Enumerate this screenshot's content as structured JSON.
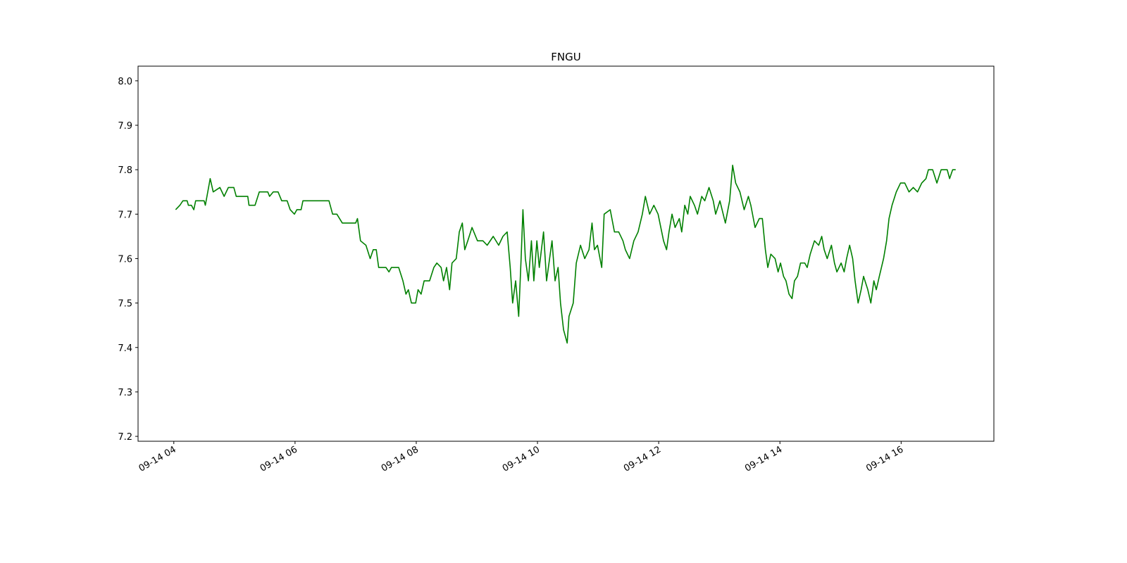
{
  "chart_data": {
    "type": "line",
    "title": "FNGU",
    "color": "#008000",
    "xlim": [
      3.41,
      17.53
    ],
    "ylim": [
      7.189,
      8.033
    ],
    "xticks": [
      {
        "value": 4,
        "label": "09-14 04"
      },
      {
        "value": 6,
        "label": "09-14 06"
      },
      {
        "value": 8,
        "label": "09-14 08"
      },
      {
        "value": 10,
        "label": "09-14 10"
      },
      {
        "value": 12,
        "label": "09-14 12"
      },
      {
        "value": 14,
        "label": "09-14 14"
      },
      {
        "value": 16,
        "label": "09-14 16"
      }
    ],
    "yticks": [
      7.2,
      7.3,
      7.4,
      7.5,
      7.6,
      7.7,
      7.8,
      7.9,
      {
        "value": 8.0,
        "label": "8.0"
      }
    ],
    "x": [
      4.03,
      4.1,
      4.15,
      4.22,
      4.24,
      4.29,
      4.33,
      4.36,
      4.5,
      4.52,
      4.56,
      4.6,
      4.65,
      4.76,
      4.83,
      4.9,
      4.99,
      5.03,
      5.22,
      5.24,
      5.34,
      5.41,
      5.55,
      5.58,
      5.64,
      5.72,
      5.78,
      5.87,
      5.92,
      5.99,
      6.03,
      6.1,
      6.13,
      6.56,
      6.62,
      6.69,
      6.78,
      7.0,
      7.03,
      7.08,
      7.17,
      7.24,
      7.29,
      7.34,
      7.38,
      7.43,
      7.5,
      7.55,
      7.59,
      7.71,
      7.78,
      7.83,
      7.87,
      7.92,
      7.99,
      8.03,
      8.08,
      8.13,
      8.22,
      8.29,
      8.34,
      8.41,
      8.45,
      8.5,
      8.55,
      8.59,
      8.66,
      8.71,
      8.76,
      8.8,
      8.85,
      8.92,
      9.01,
      9.1,
      9.17,
      9.27,
      9.36,
      9.43,
      9.5,
      9.55,
      9.59,
      9.64,
      9.69,
      9.73,
      9.76,
      9.8,
      9.85,
      9.9,
      9.94,
      9.99,
      10.03,
      10.1,
      10.15,
      10.2,
      10.24,
      10.29,
      10.34,
      10.38,
      10.43,
      10.49,
      10.52,
      10.59,
      10.64,
      10.71,
      10.78,
      10.85,
      10.9,
      10.94,
      10.99,
      11.06,
      11.1,
      11.2,
      11.27,
      11.34,
      11.41,
      11.45,
      11.52,
      11.59,
      11.66,
      11.73,
      11.78,
      11.85,
      11.92,
      11.99,
      12.08,
      12.13,
      12.17,
      12.22,
      12.27,
      12.34,
      12.38,
      12.43,
      12.48,
      12.52,
      12.59,
      12.64,
      12.71,
      12.76,
      12.83,
      12.9,
      12.94,
      13.01,
      13.1,
      13.17,
      13.22,
      13.27,
      13.34,
      13.41,
      13.48,
      13.52,
      13.59,
      13.66,
      13.71,
      13.76,
      13.8,
      13.85,
      13.92,
      13.97,
      14.01,
      14.06,
      14.1,
      14.15,
      14.2,
      14.24,
      14.29,
      14.34,
      14.41,
      14.45,
      14.5,
      14.57,
      14.64,
      14.69,
      14.73,
      14.78,
      14.85,
      14.9,
      14.94,
      15.01,
      15.06,
      15.1,
      15.15,
      15.2,
      15.24,
      15.29,
      15.34,
      15.38,
      15.45,
      15.5,
      15.55,
      15.59,
      15.64,
      15.71,
      15.76,
      15.8,
      15.85,
      15.92,
      15.99,
      16.06,
      16.13,
      16.2,
      16.27,
      16.34,
      16.41,
      16.45,
      16.52,
      16.59,
      16.66,
      16.76,
      16.8,
      16.85,
      16.9
    ],
    "values": [
      7.71,
      7.72,
      7.73,
      7.73,
      7.72,
      7.72,
      7.71,
      7.73,
      7.73,
      7.72,
      7.75,
      7.78,
      7.75,
      7.76,
      7.74,
      7.76,
      7.76,
      7.74,
      7.74,
      7.72,
      7.72,
      7.75,
      7.75,
      7.74,
      7.75,
      7.75,
      7.73,
      7.73,
      7.71,
      7.7,
      7.71,
      7.71,
      7.73,
      7.73,
      7.7,
      7.7,
      7.68,
      7.68,
      7.69,
      7.64,
      7.63,
      7.6,
      7.62,
      7.62,
      7.58,
      7.58,
      7.58,
      7.57,
      7.58,
      7.58,
      7.55,
      7.52,
      7.53,
      7.5,
      7.5,
      7.53,
      7.52,
      7.55,
      7.55,
      7.58,
      7.59,
      7.58,
      7.55,
      7.58,
      7.53,
      7.59,
      7.6,
      7.66,
      7.68,
      7.62,
      7.64,
      7.67,
      7.64,
      7.64,
      7.63,
      7.65,
      7.63,
      7.65,
      7.66,
      7.58,
      7.5,
      7.55,
      7.47,
      7.6,
      7.71,
      7.6,
      7.55,
      7.64,
      7.55,
      7.64,
      7.58,
      7.66,
      7.55,
      7.6,
      7.64,
      7.55,
      7.58,
      7.5,
      7.44,
      7.41,
      7.47,
      7.5,
      7.59,
      7.63,
      7.6,
      7.62,
      7.68,
      7.62,
      7.63,
      7.58,
      7.7,
      7.71,
      7.66,
      7.66,
      7.64,
      7.62,
      7.6,
      7.64,
      7.66,
      7.7,
      7.74,
      7.7,
      7.72,
      7.7,
      7.64,
      7.62,
      7.66,
      7.7,
      7.67,
      7.69,
      7.66,
      7.72,
      7.7,
      7.74,
      7.72,
      7.7,
      7.74,
      7.73,
      7.76,
      7.73,
      7.7,
      7.73,
      7.68,
      7.73,
      7.81,
      7.77,
      7.75,
      7.71,
      7.74,
      7.72,
      7.67,
      7.69,
      7.69,
      7.62,
      7.58,
      7.61,
      7.6,
      7.57,
      7.59,
      7.56,
      7.55,
      7.52,
      7.51,
      7.55,
      7.56,
      7.59,
      7.59,
      7.58,
      7.61,
      7.64,
      7.63,
      7.65,
      7.62,
      7.6,
      7.63,
      7.59,
      7.57,
      7.59,
      7.57,
      7.6,
      7.63,
      7.6,
      7.55,
      7.5,
      7.53,
      7.56,
      7.53,
      7.5,
      7.55,
      7.53,
      7.56,
      7.6,
      7.64,
      7.69,
      7.72,
      7.75,
      7.77,
      7.77,
      7.75,
      7.76,
      7.75,
      7.77,
      7.78,
      7.8,
      7.8,
      7.77,
      7.8,
      7.8,
      7.78,
      7.8,
      7.8
    ]
  }
}
